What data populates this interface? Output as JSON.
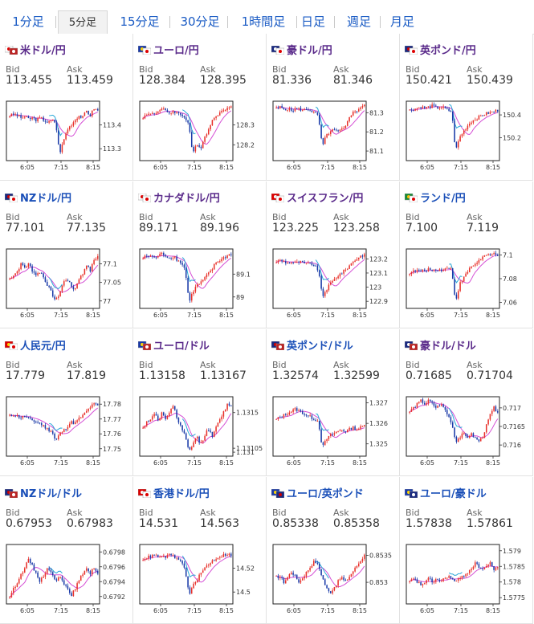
{
  "tabs": [
    {
      "label": "1分足",
      "active": false
    },
    {
      "label": "5分足",
      "active": true
    },
    {
      "label": "15分足",
      "active": false
    },
    {
      "label": "30分足",
      "active": false
    },
    {
      "label": "1時間足",
      "active": false
    },
    {
      "label": "日足",
      "active": false
    },
    {
      "label": "週足",
      "active": false
    },
    {
      "label": "月足",
      "active": false
    }
  ],
  "labels": {
    "bid": "Bid",
    "ask": "Ask"
  },
  "colors": {
    "up": "#e8302a",
    "down": "#1a3aa8",
    "ma1": "#d54fd5",
    "ma2": "#2aa8d8",
    "frame": "#222222",
    "link": "#1a4fb8",
    "visited": "#5a2a8a"
  },
  "panels": [
    {
      "name": "usdjpy",
      "title": "米ドル/円",
      "visited": true,
      "flag": "flag-jp-us",
      "bid": "113.455",
      "ask": "113.459",
      "chart_data": {
        "type": "candlestick",
        "x_labels": [
          "6:05",
          "7:15",
          "8:15"
        ],
        "y_labels": [
          "113.4",
          "113.3"
        ],
        "y_ticks": [
          113.4,
          113.3
        ],
        "ylim": [
          113.25,
          113.5
        ],
        "ma_color": "#d54fd5",
        "ma2_color": "#2aa8d8",
        "trend": [
          113.44,
          113.445,
          113.44,
          113.43,
          113.435,
          113.425,
          113.43,
          113.42,
          113.43,
          113.42,
          113.41,
          113.42,
          113.41,
          113.28,
          113.33,
          113.38,
          113.4,
          113.42,
          113.44,
          113.43,
          113.46,
          113.44,
          113.47,
          113.46
        ]
      }
    },
    {
      "name": "eurjpy",
      "title": "ユーロ/円",
      "visited": true,
      "flag": "flag-eu-jp",
      "bid": "128.384",
      "ask": "128.395",
      "chart_data": {
        "type": "candlestick",
        "x_labels": [
          "6:05",
          "7:15",
          "8:15"
        ],
        "y_labels": [
          "128.3",
          "128.2"
        ],
        "y_ticks": [
          128.3,
          128.2
        ],
        "ylim": [
          128.12,
          128.42
        ],
        "ma_color": "#d54fd5",
        "ma2_color": "#2aa8d8",
        "trend": [
          128.34,
          128.35,
          128.36,
          128.36,
          128.37,
          128.38,
          128.37,
          128.36,
          128.37,
          128.36,
          128.35,
          128.34,
          128.3,
          128.15,
          128.2,
          128.18,
          128.24,
          128.27,
          128.32,
          128.35,
          128.36,
          128.37,
          128.39,
          128.4
        ]
      }
    },
    {
      "name": "audjpy",
      "title": "豪ドル/円",
      "visited": true,
      "flag": "flag-au-jp",
      "bid": "81.336",
      "ask": "81.346",
      "chart_data": {
        "type": "candlestick",
        "x_labels": [
          "6:05",
          "7:15",
          "8:15"
        ],
        "y_labels": [
          "81.3",
          "81.2",
          "81.1"
        ],
        "y_ticks": [
          81.3,
          81.2,
          81.1
        ],
        "ylim": [
          81.05,
          81.36
        ],
        "ma_color": "#d54fd5",
        "ma2_color": "#2aa8d8",
        "trend": [
          81.32,
          81.33,
          81.32,
          81.32,
          81.31,
          81.32,
          81.32,
          81.31,
          81.32,
          81.31,
          81.3,
          81.28,
          81.12,
          81.18,
          81.2,
          81.21,
          81.2,
          81.21,
          81.22,
          81.28,
          81.3,
          81.31,
          81.33,
          81.34
        ]
      }
    },
    {
      "name": "gbpjpy",
      "title": "英ポンド/円",
      "visited": true,
      "flag": "flag-gb-jp",
      "bid": "150.421",
      "ask": "150.439",
      "chart_data": {
        "type": "candlestick",
        "x_labels": [
          "6:05",
          "7:15",
          "8:15"
        ],
        "y_labels": [
          "150.4",
          "150.2"
        ],
        "y_ticks": [
          150.4,
          150.2
        ],
        "ylim": [
          150.0,
          150.52
        ],
        "ma_color": "#d54fd5",
        "ma2_color": "#2aa8d8",
        "trend": [
          150.44,
          150.45,
          150.46,
          150.47,
          150.46,
          150.47,
          150.48,
          150.46,
          150.47,
          150.46,
          150.44,
          150.43,
          150.08,
          150.2,
          150.25,
          150.3,
          150.34,
          150.36,
          150.38,
          150.4,
          150.41,
          150.42,
          150.43,
          150.44
        ]
      }
    },
    {
      "name": "nzdjpy",
      "title": "NZドル/円",
      "visited": false,
      "flag": "flag-nz-jp",
      "bid": "77.101",
      "ask": "77.135",
      "chart_data": {
        "type": "candlestick",
        "x_labels": [
          "6:05",
          "7:15",
          "8:15"
        ],
        "y_labels": [
          "77.1",
          "77.05",
          "77"
        ],
        "y_ticks": [
          77.1,
          77.05,
          77.0
        ],
        "ylim": [
          76.98,
          77.14
        ],
        "ma_color": "#d54fd5",
        "ma2_color": "#2aa8d8",
        "trend": [
          77.06,
          77.07,
          77.08,
          77.1,
          77.09,
          77.1,
          77.08,
          77.07,
          77.08,
          77.06,
          77.04,
          77.02,
          77.0,
          77.02,
          77.05,
          77.06,
          77.04,
          77.03,
          77.06,
          77.07,
          77.1,
          77.08,
          77.11,
          77.12
        ]
      }
    },
    {
      "name": "cadjpy",
      "title": "カナダドル/円",
      "visited": true,
      "flag": "flag-ca-jp",
      "bid": "89.171",
      "ask": "89.196",
      "chart_data": {
        "type": "candlestick",
        "x_labels": [
          "6:05",
          "7:15",
          "8:15"
        ],
        "y_labels": [
          "89.1",
          "89"
        ],
        "y_ticks": [
          89.1,
          89.0
        ],
        "ylim": [
          88.95,
          89.21
        ],
        "ma_color": "#d54fd5",
        "ma2_color": "#2aa8d8",
        "trend": [
          89.17,
          89.18,
          89.18,
          89.17,
          89.18,
          89.19,
          89.18,
          89.17,
          89.18,
          89.16,
          89.15,
          89.12,
          88.98,
          89.02,
          89.05,
          89.06,
          89.08,
          89.1,
          89.12,
          89.15,
          89.16,
          89.17,
          89.18,
          89.19
        ]
      }
    },
    {
      "name": "chfjpy",
      "title": "スイスフラン/円",
      "visited": true,
      "flag": "flag-ch-jp",
      "bid": "123.225",
      "ask": "123.258",
      "chart_data": {
        "type": "candlestick",
        "x_labels": [
          "6:05",
          "7:15",
          "8:15"
        ],
        "y_labels": [
          "123.2",
          "123.1",
          "123",
          "122.9"
        ],
        "y_ticks": [
          123.2,
          123.1,
          123.0,
          122.9
        ],
        "ylim": [
          122.85,
          123.27
        ],
        "ma_color": "#d54fd5",
        "ma2_color": "#2aa8d8",
        "trend": [
          123.18,
          123.19,
          123.18,
          123.17,
          123.18,
          123.17,
          123.18,
          123.17,
          123.16,
          123.17,
          123.15,
          123.12,
          122.93,
          122.98,
          123.02,
          123.05,
          123.08,
          123.1,
          123.12,
          123.15,
          123.18,
          123.2,
          123.22,
          123.23
        ]
      }
    },
    {
      "name": "zarjpy",
      "title": "ランド/円",
      "visited": false,
      "flag": "flag-za-jp",
      "bid": "7.100",
      "ask": "7.119",
      "chart_data": {
        "type": "candlestick",
        "x_labels": [
          "6:05",
          "7:15",
          "8:15"
        ],
        "y_labels": [
          "7.1",
          "7.08",
          "7.06"
        ],
        "y_ticks": [
          7.1,
          7.08,
          7.06
        ],
        "ylim": [
          7.055,
          7.105
        ],
        "ma_color": "#d54fd5",
        "ma2_color": "#2aa8d8",
        "trend": [
          7.085,
          7.086,
          7.087,
          7.086,
          7.087,
          7.088,
          7.087,
          7.088,
          7.087,
          7.088,
          7.089,
          7.088,
          7.06,
          7.075,
          7.08,
          7.085,
          7.09,
          7.092,
          7.095,
          7.098,
          7.1,
          7.099,
          7.101,
          7.1
        ]
      }
    },
    {
      "name": "cnyjpy",
      "title": "人民元/円",
      "visited": false,
      "flag": "flag-cn-jp",
      "bid": "17.779",
      "ask": "17.819",
      "chart_data": {
        "type": "candlestick",
        "x_labels": [
          "6:05",
          "7:15",
          "8:15"
        ],
        "y_labels": [
          "17.78",
          "17.77",
          "17.76",
          "17.75"
        ],
        "y_ticks": [
          17.78,
          17.77,
          17.76,
          17.75
        ],
        "ylim": [
          17.745,
          17.785
        ],
        "ma_color": "#d54fd5",
        "ma2_color": "#2aa8d8",
        "trend": [
          17.772,
          17.773,
          17.772,
          17.771,
          17.772,
          17.77,
          17.769,
          17.768,
          17.767,
          17.765,
          17.763,
          17.762,
          17.755,
          17.76,
          17.762,
          17.765,
          17.768,
          17.767,
          17.77,
          17.772,
          17.775,
          17.778,
          17.78,
          17.779
        ]
      }
    },
    {
      "name": "eurusd",
      "title": "ユーロ/ドル",
      "visited": true,
      "flag": "flag-eu-us",
      "bid": "1.13158",
      "ask": "1.13167",
      "chart_data": {
        "type": "candlestick",
        "x_labels": [
          "6:05",
          "7:15",
          "8:15"
        ],
        "y_labels": [
          "1.1315",
          "1.131",
          "1.13105"
        ],
        "y_ticks": [
          1.1315,
          1.131,
          1.13105
        ],
        "ylim": [
          1.13095,
          1.1317
        ],
        "ma_color": "#d54fd5",
        "ma2_color": "#2aa8d8",
        "trend": [
          1.1313,
          1.1314,
          1.1314,
          1.1315,
          1.1314,
          1.1315,
          1.1314,
          1.1315,
          1.1316,
          1.1314,
          1.1313,
          1.1312,
          1.131,
          1.1311,
          1.1312,
          1.1311,
          1.1312,
          1.1313,
          1.1312,
          1.1313,
          1.1314,
          1.1315,
          1.1316,
          1.1316
        ]
      }
    },
    {
      "name": "gbpusd",
      "title": "英ポンド/ドル",
      "visited": false,
      "flag": "flag-gb-us",
      "bid": "1.32574",
      "ask": "1.32599",
      "chart_data": {
        "type": "candlestick",
        "x_labels": [
          "6:05",
          "7:15",
          "8:15"
        ],
        "y_labels": [
          "1.327",
          "1.326",
          "1.325"
        ],
        "y_ticks": [
          1.327,
          1.326,
          1.325
        ],
        "ylim": [
          1.3244,
          1.3273
        ],
        "ma_color": "#d54fd5",
        "ma2_color": "#2aa8d8",
        "trend": [
          1.3262,
          1.3263,
          1.3264,
          1.3265,
          1.3266,
          1.3267,
          1.3266,
          1.3265,
          1.3264,
          1.3263,
          1.3262,
          1.3261,
          1.3248,
          1.3252,
          1.3254,
          1.3255,
          1.3256,
          1.3257,
          1.3256,
          1.3257,
          1.3258,
          1.3257,
          1.3258,
          1.3259
        ]
      }
    },
    {
      "name": "audusd",
      "title": "豪ドル/ドル",
      "visited": true,
      "flag": "flag-au-us",
      "bid": "0.71685",
      "ask": "0.71704",
      "chart_data": {
        "type": "candlestick",
        "x_labels": [
          "6:05",
          "7:15",
          "8:15"
        ],
        "y_labels": [
          "0.717",
          "0.7165",
          "0.716"
        ],
        "y_ticks": [
          0.717,
          0.7165,
          0.716
        ],
        "ylim": [
          0.7157,
          0.7173
        ],
        "ma_color": "#d54fd5",
        "ma2_color": "#2aa8d8",
        "trend": [
          0.7169,
          0.717,
          0.7171,
          0.7172,
          0.7171,
          0.7172,
          0.7171,
          0.717,
          0.7171,
          0.717,
          0.7168,
          0.7166,
          0.7161,
          0.7162,
          0.7163,
          0.7162,
          0.7163,
          0.7162,
          0.7161,
          0.7162,
          0.7165,
          0.7168,
          0.717,
          0.7169
        ]
      }
    },
    {
      "name": "nzdusd",
      "title": "NZドル/ドル",
      "visited": false,
      "flag": "flag-nz-us",
      "bid": "0.67953",
      "ask": "0.67983",
      "chart_data": {
        "type": "candlestick",
        "x_labels": [
          "6:05",
          "7:15",
          "8:15"
        ],
        "y_labels": [
          "0.6798",
          "0.6796",
          "0.6794",
          "0.6792"
        ],
        "y_ticks": [
          0.6798,
          0.6796,
          0.6794,
          0.6792
        ],
        "ylim": [
          0.6791,
          0.6799
        ],
        "ma_color": "#d54fd5",
        "ma2_color": "#2aa8d8",
        "trend": [
          0.6792,
          0.6793,
          0.6794,
          0.6795,
          0.6796,
          0.6797,
          0.6796,
          0.6795,
          0.6794,
          0.6795,
          0.6796,
          0.6795,
          0.6794,
          0.6795,
          0.6794,
          0.6793,
          0.6792,
          0.6793,
          0.6794,
          0.6795,
          0.6796,
          0.6795,
          0.6796,
          0.6795
        ]
      }
    },
    {
      "name": "hkdjpy",
      "title": "香港ドル/円",
      "visited": false,
      "flag": "flag-hk-jp",
      "bid": "14.531",
      "ask": "14.563",
      "chart_data": {
        "type": "candlestick",
        "x_labels": [
          "6:05",
          "7:15",
          "8:15"
        ],
        "y_labels": [
          "14.52",
          "14.5"
        ],
        "y_ticks": [
          14.52,
          14.5
        ],
        "ylim": [
          14.49,
          14.54
        ],
        "ma_color": "#d54fd5",
        "ma2_color": "#2aa8d8",
        "trend": [
          14.528,
          14.529,
          14.53,
          14.531,
          14.53,
          14.529,
          14.53,
          14.531,
          14.53,
          14.528,
          14.525,
          14.52,
          14.497,
          14.505,
          14.51,
          14.515,
          14.52,
          14.523,
          14.526,
          14.528,
          14.53,
          14.531,
          14.532,
          14.531
        ]
      }
    },
    {
      "name": "eurgbp",
      "title": "ユーロ/英ポンド",
      "visited": false,
      "flag": "flag-eu-gb",
      "bid": "0.85338",
      "ask": "0.85358",
      "chart_data": {
        "type": "candlestick",
        "x_labels": [
          "6:05",
          "7:15",
          "8:15"
        ],
        "y_labels": [
          "0.8535",
          "0.853"
        ],
        "y_ticks": [
          0.8535,
          0.853
        ],
        "ylim": [
          0.8526,
          0.8537
        ],
        "ma_color": "#d54fd5",
        "ma2_color": "#2aa8d8",
        "trend": [
          0.8531,
          0.8531,
          0.853,
          0.8531,
          0.8532,
          0.8531,
          0.853,
          0.8531,
          0.8532,
          0.8533,
          0.8534,
          0.8533,
          0.8531,
          0.8529,
          0.8528,
          0.8529,
          0.853,
          0.8531,
          0.853,
          0.8531,
          0.8532,
          0.8533,
          0.8534,
          0.8535
        ]
      }
    },
    {
      "name": "euraud",
      "title": "ユーロ/豪ドル",
      "visited": false,
      "flag": "flag-eu-au",
      "bid": "1.57838",
      "ask": "1.57861",
      "chart_data": {
        "type": "candlestick",
        "x_labels": [
          "6:05",
          "7:15",
          "8:15"
        ],
        "y_labels": [
          "1.579",
          "1.5785",
          "1.578",
          "1.5775"
        ],
        "y_ticks": [
          1.579,
          1.5785,
          1.578,
          1.5775
        ],
        "ylim": [
          1.5773,
          1.5792
        ],
        "ma_color": "#d54fd5",
        "ma2_color": "#2aa8d8",
        "trend": [
          1.578,
          1.5781,
          1.578,
          1.5779,
          1.578,
          1.5781,
          1.578,
          1.5781,
          1.578,
          1.5781,
          1.5782,
          1.5781,
          1.578,
          1.5781,
          1.5782,
          1.5783,
          1.5784,
          1.5786,
          1.5785,
          1.5784,
          1.5785,
          1.5786,
          1.5784,
          1.5785
        ]
      }
    }
  ]
}
